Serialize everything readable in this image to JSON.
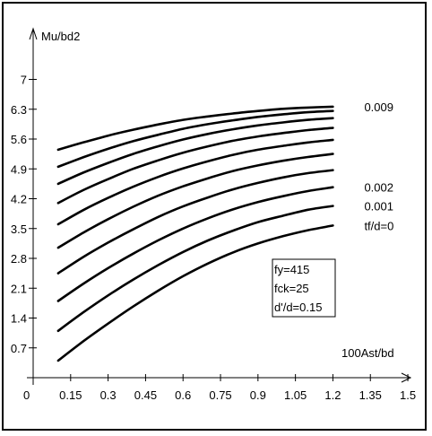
{
  "chart_data": {
    "type": "line",
    "title": "",
    "xlabel": "100Ast/bd",
    "ylabel": "Mu/bd2",
    "xlim": [
      0,
      1.5
    ],
    "ylim": [
      0,
      7
    ],
    "x_tick_labels": [
      "0",
      "0.15",
      "0.3",
      "0.45",
      "0.6",
      "0.75",
      "0.9",
      "1.05",
      "1.2",
      "1.35",
      "1.5"
    ],
    "y_tick_labels": [
      "0.7",
      "1.4",
      "2.1",
      "2.8",
      "3.5",
      "4.2",
      "4.9",
      "5.6",
      "6.3",
      "7"
    ],
    "grid": false,
    "x": [
      0.1,
      0.2,
      0.3,
      0.4,
      0.5,
      0.6,
      0.7,
      0.8,
      0.9,
      1.0,
      1.1,
      1.2
    ],
    "series": [
      {
        "values": [
          0.4,
          0.85,
          1.27,
          1.67,
          2.04,
          2.38,
          2.68,
          2.94,
          3.15,
          3.32,
          3.46,
          3.57
        ]
      },
      {
        "values": [
          1.1,
          1.53,
          1.93,
          2.3,
          2.64,
          2.95,
          3.22,
          3.45,
          3.65,
          3.8,
          3.94,
          4.03
        ]
      },
      {
        "values": [
          1.8,
          2.2,
          2.57,
          2.91,
          3.22,
          3.5,
          3.74,
          3.95,
          4.12,
          4.26,
          4.38,
          4.47
        ]
      },
      {
        "values": [
          2.45,
          2.83,
          3.17,
          3.48,
          3.77,
          4.02,
          4.23,
          4.42,
          4.57,
          4.7,
          4.8,
          4.87
        ]
      },
      {
        "values": [
          3.05,
          3.4,
          3.72,
          4.01,
          4.27,
          4.49,
          4.68,
          4.85,
          4.98,
          5.09,
          5.18,
          5.25
        ]
      },
      {
        "values": [
          3.6,
          3.93,
          4.22,
          4.48,
          4.71,
          4.91,
          5.08,
          5.23,
          5.35,
          5.44,
          5.52,
          5.58
        ]
      },
      {
        "values": [
          4.1,
          4.4,
          4.66,
          4.9,
          5.1,
          5.28,
          5.43,
          5.56,
          5.66,
          5.74,
          5.81,
          5.86
        ]
      },
      {
        "values": [
          4.55,
          4.81,
          5.04,
          5.25,
          5.43,
          5.59,
          5.72,
          5.83,
          5.92,
          5.99,
          6.05,
          6.09
        ]
      },
      {
        "values": [
          4.95,
          5.17,
          5.37,
          5.55,
          5.7,
          5.84,
          5.95,
          6.04,
          6.12,
          6.18,
          6.23,
          6.26
        ]
      },
      {
        "values": [
          5.35,
          5.52,
          5.68,
          5.82,
          5.94,
          6.05,
          6.13,
          6.2,
          6.26,
          6.31,
          6.34,
          6.36
        ]
      }
    ],
    "curve_labels": [
      {
        "text": "0.009",
        "series_index": 9
      },
      {
        "text": "0.002",
        "series_index": 2
      },
      {
        "text": "0.001",
        "series_index": 1
      },
      {
        "text": "tf/d=0",
        "series_index": 0
      }
    ],
    "note": [
      "fy=415",
      "fck=25",
      "d'/d=0.15"
    ]
  }
}
